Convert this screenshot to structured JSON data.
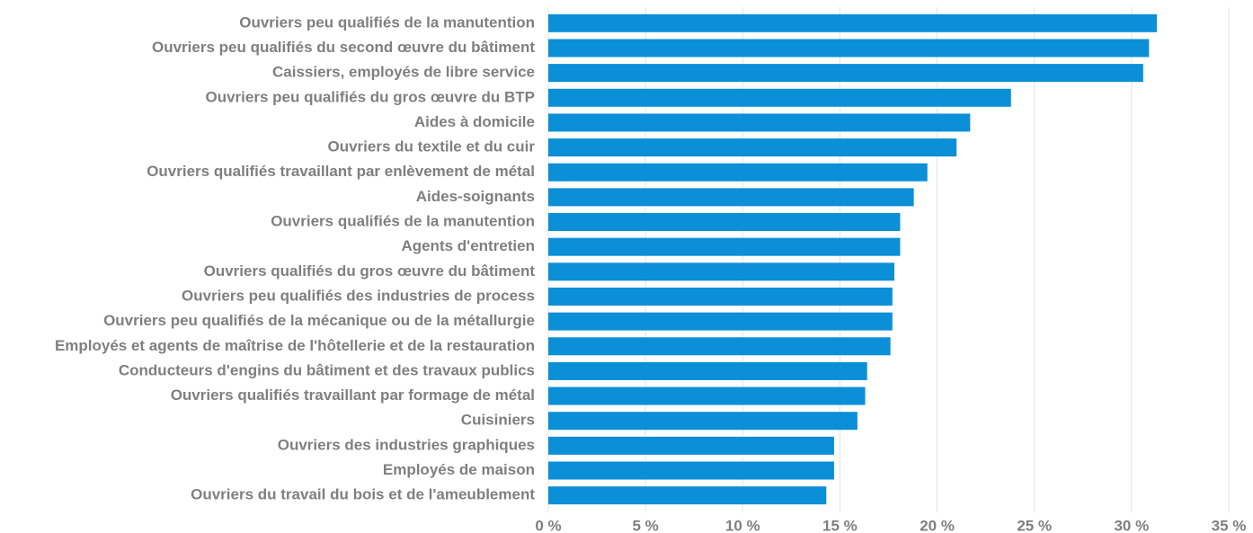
{
  "chart_data": {
    "type": "bar",
    "orientation": "horizontal",
    "categories": [
      "Ouvriers peu qualifiés de la manutention",
      "Ouvriers peu qualifiés du second œuvre du bâtiment",
      "Caissiers, employés de libre service",
      "Ouvriers peu qualifiés du gros œuvre du BTP",
      "Aides à domicile",
      "Ouvriers du textile et du cuir",
      "Ouvriers qualifiés travaillant par enlèvement de métal",
      "Aides-soignants",
      "Ouvriers qualifiés de la manutention",
      "Agents d'entretien",
      "Ouvriers qualifiés du gros œuvre du bâtiment",
      "Ouvriers peu qualifiés des industries de process",
      "Ouvriers peu qualifiés de la mécanique ou de la métallurgie",
      "Employés et agents de maîtrise de l'hôtellerie et de la restauration",
      "Conducteurs d'engins du bâtiment et des travaux publics",
      "Ouvriers qualifiés travaillant par formage de métal",
      "Cuisiniers",
      "Ouvriers des industries graphiques",
      "Employés de maison",
      "Ouvriers du travail du bois et de l'ameublement"
    ],
    "values": [
      31.3,
      30.9,
      30.6,
      23.8,
      21.7,
      21.0,
      19.5,
      18.8,
      18.1,
      18.1,
      17.8,
      17.7,
      17.7,
      17.6,
      16.4,
      16.3,
      15.9,
      14.7,
      14.7,
      14.3
    ],
    "color": "#0b8fd7",
    "xlim": [
      0,
      35
    ],
    "xticks": [
      {
        "value": 0,
        "label": "0 %"
      },
      {
        "value": 5,
        "label": "5 %"
      },
      {
        "value": 10,
        "label": "10 %"
      },
      {
        "value": 15,
        "label": "15 %"
      },
      {
        "value": 20,
        "label": "20 %"
      },
      {
        "value": 25,
        "label": "25 %"
      },
      {
        "value": 30,
        "label": "30 %"
      },
      {
        "value": 35,
        "label": "35 %"
      }
    ],
    "grid": true
  }
}
